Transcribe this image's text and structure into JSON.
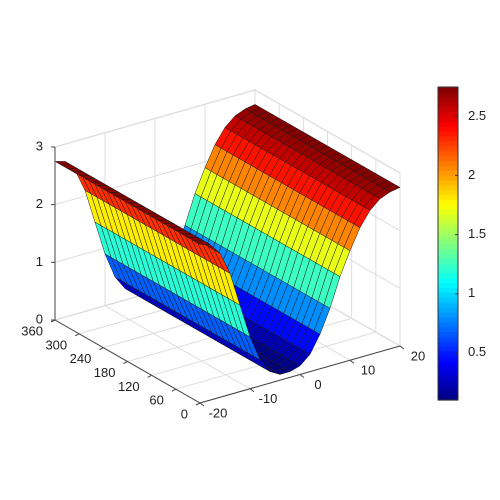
{
  "chart_data": {
    "type": "surface",
    "x": [
      -20,
      -18,
      -16,
      -14,
      -12,
      -10,
      -8,
      -6,
      -4,
      -2,
      0,
      2,
      4,
      6,
      8,
      10,
      12,
      14,
      16,
      18,
      20
    ],
    "z": [
      2.75,
      2.7,
      2.5,
      2.1,
      1.5,
      0.9,
      0.45,
      0.2,
      0.1,
      0.1,
      0.15,
      0.3,
      0.6,
      1.0,
      1.5,
      1.9,
      2.25,
      2.5,
      2.65,
      2.72,
      2.75
    ],
    "xlim": [
      -20,
      20
    ],
    "xticks": [
      -20,
      -10,
      0,
      10,
      20
    ],
    "ylim": [
      0,
      360
    ],
    "yticks": [
      0,
      60,
      120,
      180,
      240,
      300,
      360
    ],
    "zlim": [
      0,
      3
    ],
    "zticks": [
      0,
      1,
      2,
      3
    ],
    "colormap": "jet",
    "clim": [
      0.1,
      2.75
    ],
    "colorbar_ticks": [
      0.5,
      1,
      1.5,
      2,
      2.5
    ],
    "grid": true
  }
}
